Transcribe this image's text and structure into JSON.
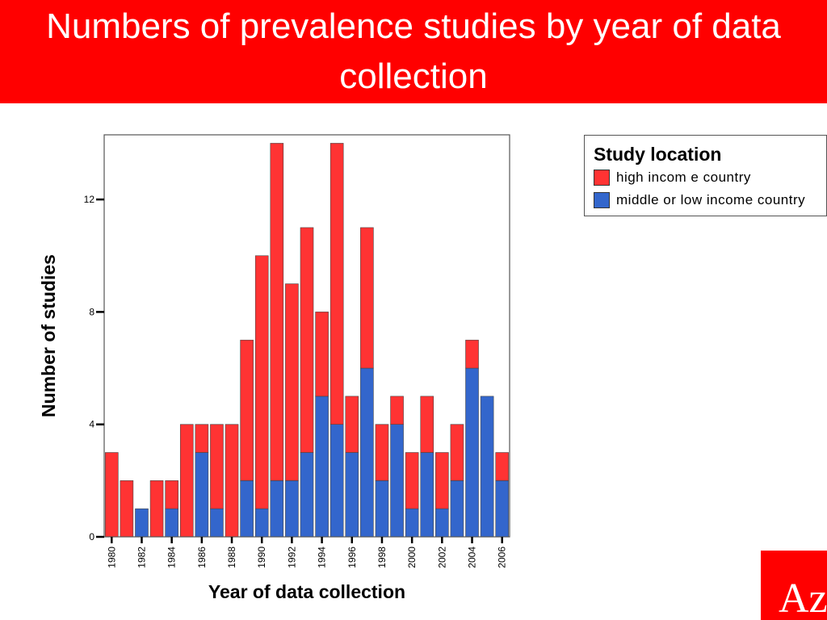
{
  "header": {
    "title": "Numbers of prevalence studies by year of data collection"
  },
  "legend": {
    "title": "Study location",
    "items": [
      {
        "label": "high incom e country",
        "color": "#ff3333"
      },
      {
        "label": "middle or low income country",
        "color": "#3366cc"
      }
    ]
  },
  "logo": {
    "text": "Az"
  },
  "chart_data": {
    "type": "bar",
    "stacked": true,
    "xlabel": "Year of data collection",
    "ylabel": "Number of studies",
    "ylim": [
      0,
      14.3
    ],
    "yticks": [
      0,
      4,
      8,
      12
    ],
    "grid": false,
    "legend_position": "right",
    "categories": [
      "1980",
      "1981",
      "1982",
      "1983",
      "1984",
      "1985",
      "1986",
      "1987",
      "1988",
      "1989",
      "1990",
      "1991",
      "1992",
      "1993",
      "1994",
      "1995",
      "1996",
      "1997",
      "1998",
      "1999",
      "2000",
      "2001",
      "2002",
      "2003",
      "2004",
      "2005",
      "2006"
    ],
    "xtick_labels": [
      "1980",
      "1982",
      "1984",
      "1986",
      "1988",
      "1990",
      "1992",
      "1994",
      "1996",
      "1998",
      "2000",
      "2002",
      "2004",
      "2006"
    ],
    "series": [
      {
        "name": "middle or low income country",
        "color": "#3366cc",
        "values": [
          0,
          0,
          1,
          0,
          1,
          0,
          3,
          1,
          0,
          2,
          1,
          2,
          2,
          3,
          5,
          4,
          3,
          6,
          2,
          4,
          1,
          3,
          1,
          2,
          6,
          5,
          2
        ]
      },
      {
        "name": "high incom e country",
        "color": "#ff3333",
        "values": [
          3,
          2,
          0,
          2,
          1,
          4,
          1,
          3,
          4,
          5,
          9,
          12,
          7,
          8,
          3,
          10,
          2,
          5,
          2,
          1,
          2,
          2,
          2,
          2,
          1,
          0,
          1
        ]
      }
    ]
  }
}
